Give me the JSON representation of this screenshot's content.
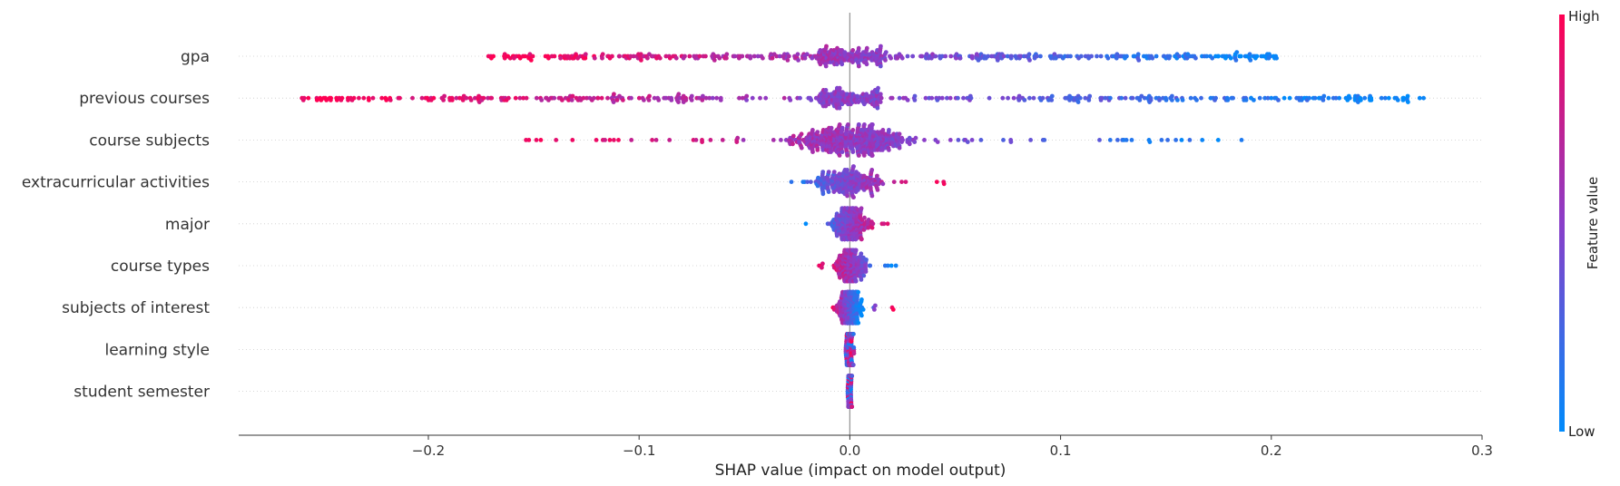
{
  "chart_data": {
    "type": "scatter",
    "subtype": "shap-beeswarm",
    "title": "",
    "xlabel": "SHAP value (impact on model output)",
    "xlim": [
      -0.29,
      0.3
    ],
    "xticks": [
      -0.2,
      -0.1,
      0.0,
      0.1,
      0.2,
      0.3
    ],
    "xtick_labels": [
      "−0.2",
      "−0.1",
      "0.0",
      "0.1",
      "0.2",
      "0.3"
    ],
    "features": [
      {
        "name": "gpa",
        "low_side": "right",
        "range": [
          -0.172,
          0.204
        ],
        "spread": "wide",
        "sample_values": [
          -0.17,
          -0.15,
          -0.12,
          -0.08,
          -0.05,
          -0.02,
          0.014,
          0.05,
          0.09,
          0.13,
          0.17,
          0.204
        ]
      },
      {
        "name": "previous courses",
        "low_side": "right",
        "range": [
          -0.262,
          0.273
        ],
        "spread": "wide",
        "sample_values": [
          -0.262,
          -0.235,
          -0.2,
          -0.17,
          -0.12,
          -0.08,
          -0.03,
          0.0,
          0.05,
          0.1,
          0.15,
          0.2,
          0.25,
          0.273
        ]
      },
      {
        "name": "course subjects",
        "low_side": "right",
        "range": [
          -0.157,
          0.19
        ],
        "spread": "dense-center",
        "sample_values": [
          -0.157,
          -0.095,
          -0.065,
          -0.04,
          -0.01,
          0.0,
          0.02,
          0.05,
          0.085,
          0.155,
          0.19
        ]
      },
      {
        "name": "extracurricular activities",
        "low_side": "left",
        "range": [
          -0.041,
          0.047
        ],
        "spread": "narrow",
        "sample_values": [
          -0.041,
          -0.025,
          -0.01,
          0.0,
          0.015,
          0.03,
          0.039,
          0.047
        ]
      },
      {
        "name": "major",
        "low_side": "left",
        "range": [
          -0.022,
          0.022
        ],
        "spread": "narrow",
        "sample_values": [
          -0.022,
          -0.01,
          0.0,
          0.01,
          0.022
        ]
      },
      {
        "name": "course types",
        "low_side": "right",
        "range": [
          -0.015,
          0.022
        ],
        "spread": "narrow",
        "sample_values": [
          -0.015,
          -0.005,
          0.0,
          0.01,
          0.022
        ]
      },
      {
        "name": "subjects of interest",
        "low_side": "center",
        "range": [
          -0.01,
          0.021
        ],
        "spread": "narrow",
        "sample_values": [
          -0.01,
          0.0,
          0.01,
          0.021
        ]
      },
      {
        "name": "learning style",
        "low_side": "mixed",
        "range": [
          -0.002,
          0.002
        ],
        "spread": "tight",
        "sample_values": [
          -0.002,
          0.0,
          0.002
        ]
      },
      {
        "name": "student semester",
        "low_side": "mixed",
        "range": [
          -0.001,
          0.001
        ],
        "spread": "tight",
        "sample_values": [
          -0.001,
          0.0,
          0.001
        ]
      }
    ],
    "colorbar": {
      "label": "Feature value",
      "high_label": "High",
      "low_label": "Low",
      "high_color": "#ff0052",
      "low_color": "#008bfb"
    },
    "grid": false,
    "legend": "none"
  }
}
